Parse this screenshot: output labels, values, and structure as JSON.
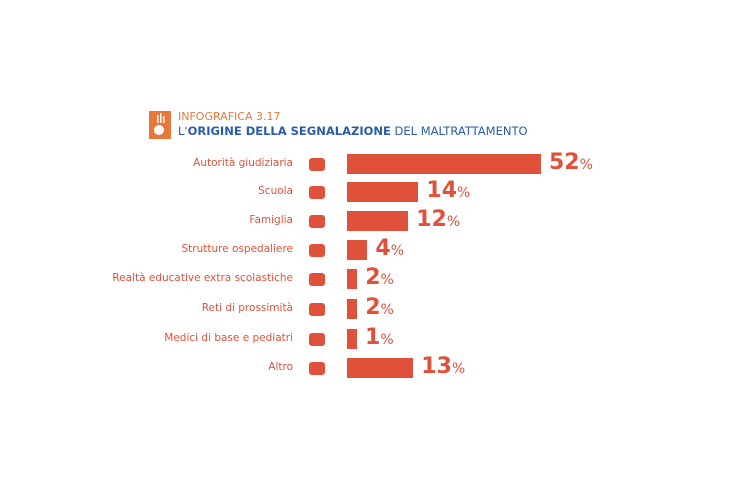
{
  "header": {
    "kicker": "INFOGRAFICA 3.17",
    "title_pre": "L'",
    "title_bold": "ORIGINE DELLA SEGNALAZIONE",
    "title_post": " DEL MALTRATTAMENTO"
  },
  "chart_data": {
    "type": "bar",
    "orientation": "horizontal",
    "unit": "%",
    "categories": [
      "Autorità giudiziaria",
      "Scuola",
      "Famiglia",
      "Strutture ospedaliere",
      "Realtà educative extra scolastiche",
      "Reti di prossimità",
      "Medici di base e pediatri",
      "Altro"
    ],
    "icons": [
      "gavel-icon",
      "school-icon",
      "family-icon",
      "hospital-icon",
      "sports-icon",
      "network-icon",
      "doctor-icon",
      "warning-message-icon"
    ],
    "values": [
      52,
      14,
      12,
      4,
      2,
      2,
      1,
      13
    ],
    "color": "#e0513c"
  }
}
